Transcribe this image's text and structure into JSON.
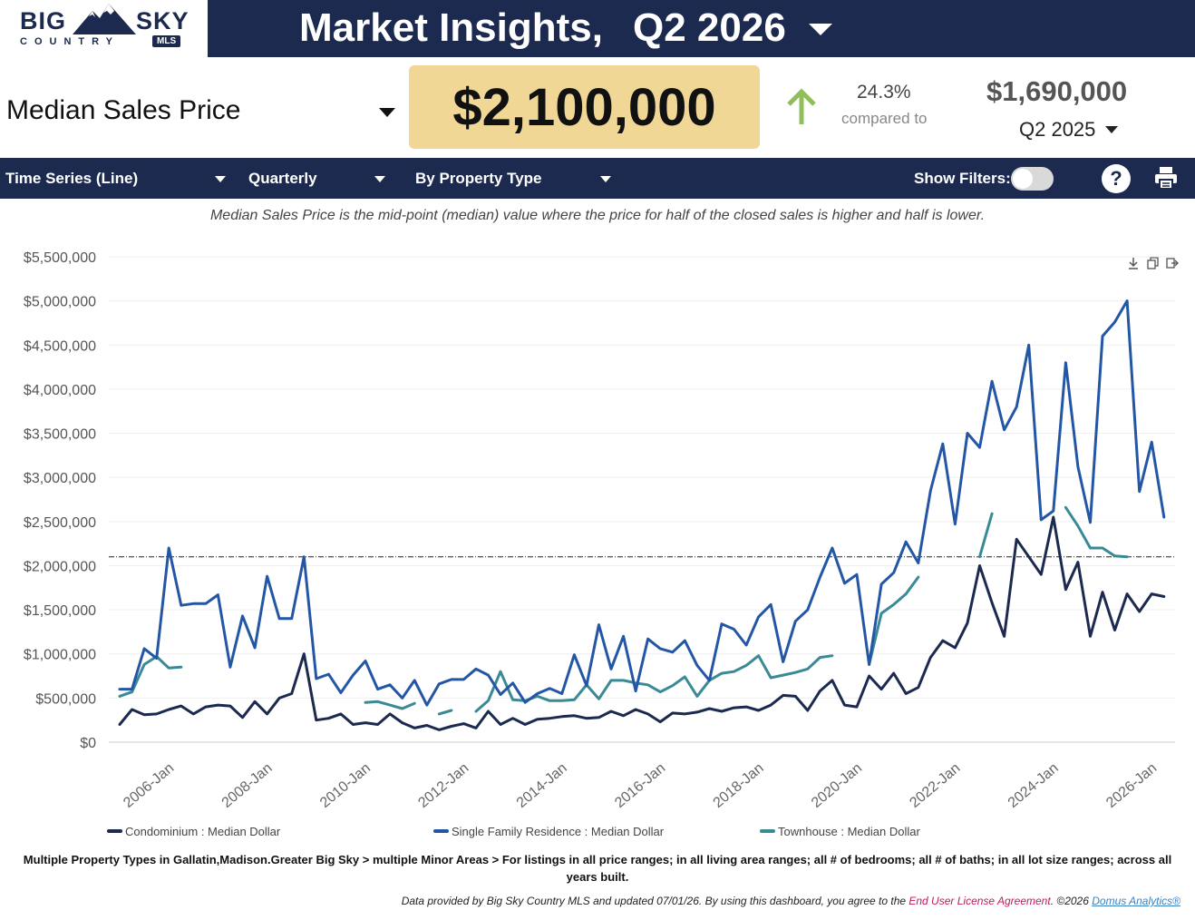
{
  "header": {
    "logo_big": "BIG",
    "logo_sky": "SKY",
    "logo_country": "COUNTRY",
    "logo_mls": "MLS",
    "title": "Market Insights,",
    "quarter": "Q2 2026"
  },
  "metric": {
    "label": "Median Sales Price",
    "value": "$2,100,000",
    "change_pct": "24.3%",
    "compared_to": "compared to",
    "prior_value": "$1,690,000",
    "prior_quarter": "Q2 2025"
  },
  "toolbar": {
    "chart_type": "Time Series (Line)",
    "period": "Quarterly",
    "grouping": "By Property Type",
    "show_filters": "Show Filters:",
    "help": "?"
  },
  "definition": "Median Sales Price is the mid-point (median) value where the price for half of the closed sales is higher and half is lower.",
  "footnote": "Multiple Property Types in Gallatin,Madison.Greater Big Sky > multiple Minor Areas > For listings in all price ranges; in all living area ranges; all # of bedrooms; all # of baths; in all lot size ranges; across all years built.",
  "credits": {
    "text": "Data provided by Big Sky Country MLS and updated 07/01/26.  By using this dashboard, you agree to the ",
    "eula": "End User License Agreement",
    "copyright": ".  ©2026 ",
    "domus": "Domus Analytics®"
  },
  "colors": {
    "navy": "#1b2a4e",
    "highlight": "#f0d796",
    "condo": "#1b2a4e",
    "sfr": "#2456a6",
    "townhouse": "#3a8a96",
    "up_arrow": "#8fbf5a"
  },
  "chart_data": {
    "type": "line",
    "ylim": [
      0,
      5500000
    ],
    "y_ticks": [
      0,
      500000,
      1000000,
      1500000,
      2000000,
      2500000,
      3000000,
      3500000,
      4000000,
      4500000,
      5000000,
      5500000
    ],
    "y_tick_labels": [
      "$0",
      "$500,000",
      "$1,000,000",
      "$1,500,000",
      "$2,000,000",
      "$2,500,000",
      "$3,000,000",
      "$3,500,000",
      "$4,000,000",
      "$4,500,000",
      "$5,000,000",
      "$5,500,000"
    ],
    "x_ticks": [
      "2006-Jan",
      "2008-Jan",
      "2010-Jan",
      "2012-Jan",
      "2014-Jan",
      "2016-Jan",
      "2018-Jan",
      "2020-Jan",
      "2022-Jan",
      "2024-Jan",
      "2026-Jan"
    ],
    "x_start": "2005-Q2",
    "reference_line": 2100000,
    "series": [
      {
        "name": "Condominium : Median Dollar",
        "color": "#1b2a4e",
        "values": [
          200000,
          370000,
          310000,
          320000,
          370000,
          410000,
          320000,
          400000,
          420000,
          410000,
          280000,
          460000,
          320000,
          500000,
          550000,
          1000000,
          250000,
          270000,
          320000,
          200000,
          220000,
          200000,
          320000,
          220000,
          160000,
          190000,
          140000,
          180000,
          210000,
          160000,
          350000,
          200000,
          270000,
          200000,
          260000,
          270000,
          290000,
          300000,
          270000,
          280000,
          350000,
          300000,
          370000,
          320000,
          230000,
          330000,
          320000,
          340000,
          380000,
          350000,
          390000,
          400000,
          360000,
          420000,
          530000,
          520000,
          360000,
          580000,
          700000,
          420000,
          400000,
          750000,
          600000,
          780000,
          550000,
          620000,
          960000,
          1150000,
          1070000,
          1350000,
          2000000,
          1580000,
          1200000,
          2300000,
          2100000,
          1900000,
          2550000,
          1730000,
          2040000,
          1200000,
          1700000,
          1270000,
          1680000,
          1480000,
          1680000,
          1650000
        ]
      },
      {
        "name": "Single Family Residence : Median Dollar",
        "color": "#2456a6",
        "values": [
          600000,
          600000,
          1060000,
          950000,
          2200000,
          1550000,
          1570000,
          1570000,
          1670000,
          850000,
          1430000,
          1070000,
          1880000,
          1400000,
          1400000,
          2100000,
          720000,
          770000,
          560000,
          760000,
          920000,
          600000,
          650000,
          500000,
          700000,
          420000,
          660000,
          710000,
          710000,
          830000,
          760000,
          540000,
          670000,
          450000,
          550000,
          610000,
          550000,
          990000,
          640000,
          1330000,
          830000,
          1200000,
          580000,
          1170000,
          1060000,
          1020000,
          1150000,
          870000,
          700000,
          1340000,
          1280000,
          1100000,
          1420000,
          1560000,
          910000,
          1370000,
          1500000,
          1870000,
          2200000,
          1800000,
          1900000,
          880000,
          1790000,
          1920000,
          2270000,
          2030000,
          2850000,
          3380000,
          2470000,
          3500000,
          3340000,
          4090000,
          3540000,
          3800000,
          4500000,
          2520000,
          2620000,
          4300000,
          3120000,
          2490000,
          4600000,
          4760000,
          5000000,
          2840000,
          3400000,
          2550000
        ]
      },
      {
        "name": "Townhouse : Median Dollar",
        "color": "#3a8a96",
        "values": [
          520000,
          570000,
          880000,
          970000,
          840000,
          850000,
          null,
          null,
          null,
          null,
          null,
          null,
          null,
          null,
          null,
          null,
          null,
          null,
          null,
          null,
          450000,
          460000,
          420000,
          380000,
          440000,
          null,
          320000,
          360000,
          null,
          350000,
          470000,
          800000,
          480000,
          470000,
          520000,
          470000,
          470000,
          480000,
          650000,
          490000,
          700000,
          700000,
          670000,
          650000,
          570000,
          640000,
          740000,
          520000,
          700000,
          780000,
          800000,
          870000,
          980000,
          730000,
          760000,
          790000,
          830000,
          960000,
          980000,
          null,
          null,
          880000,
          1460000,
          1560000,
          1680000,
          1870000,
          null,
          null,
          null,
          null,
          2100000,
          2590000,
          null,
          null,
          null,
          null,
          null,
          2660000,
          2450000,
          2200000,
          2200000,
          2110000,
          2100000,
          null,
          null,
          null
        ]
      }
    ]
  }
}
